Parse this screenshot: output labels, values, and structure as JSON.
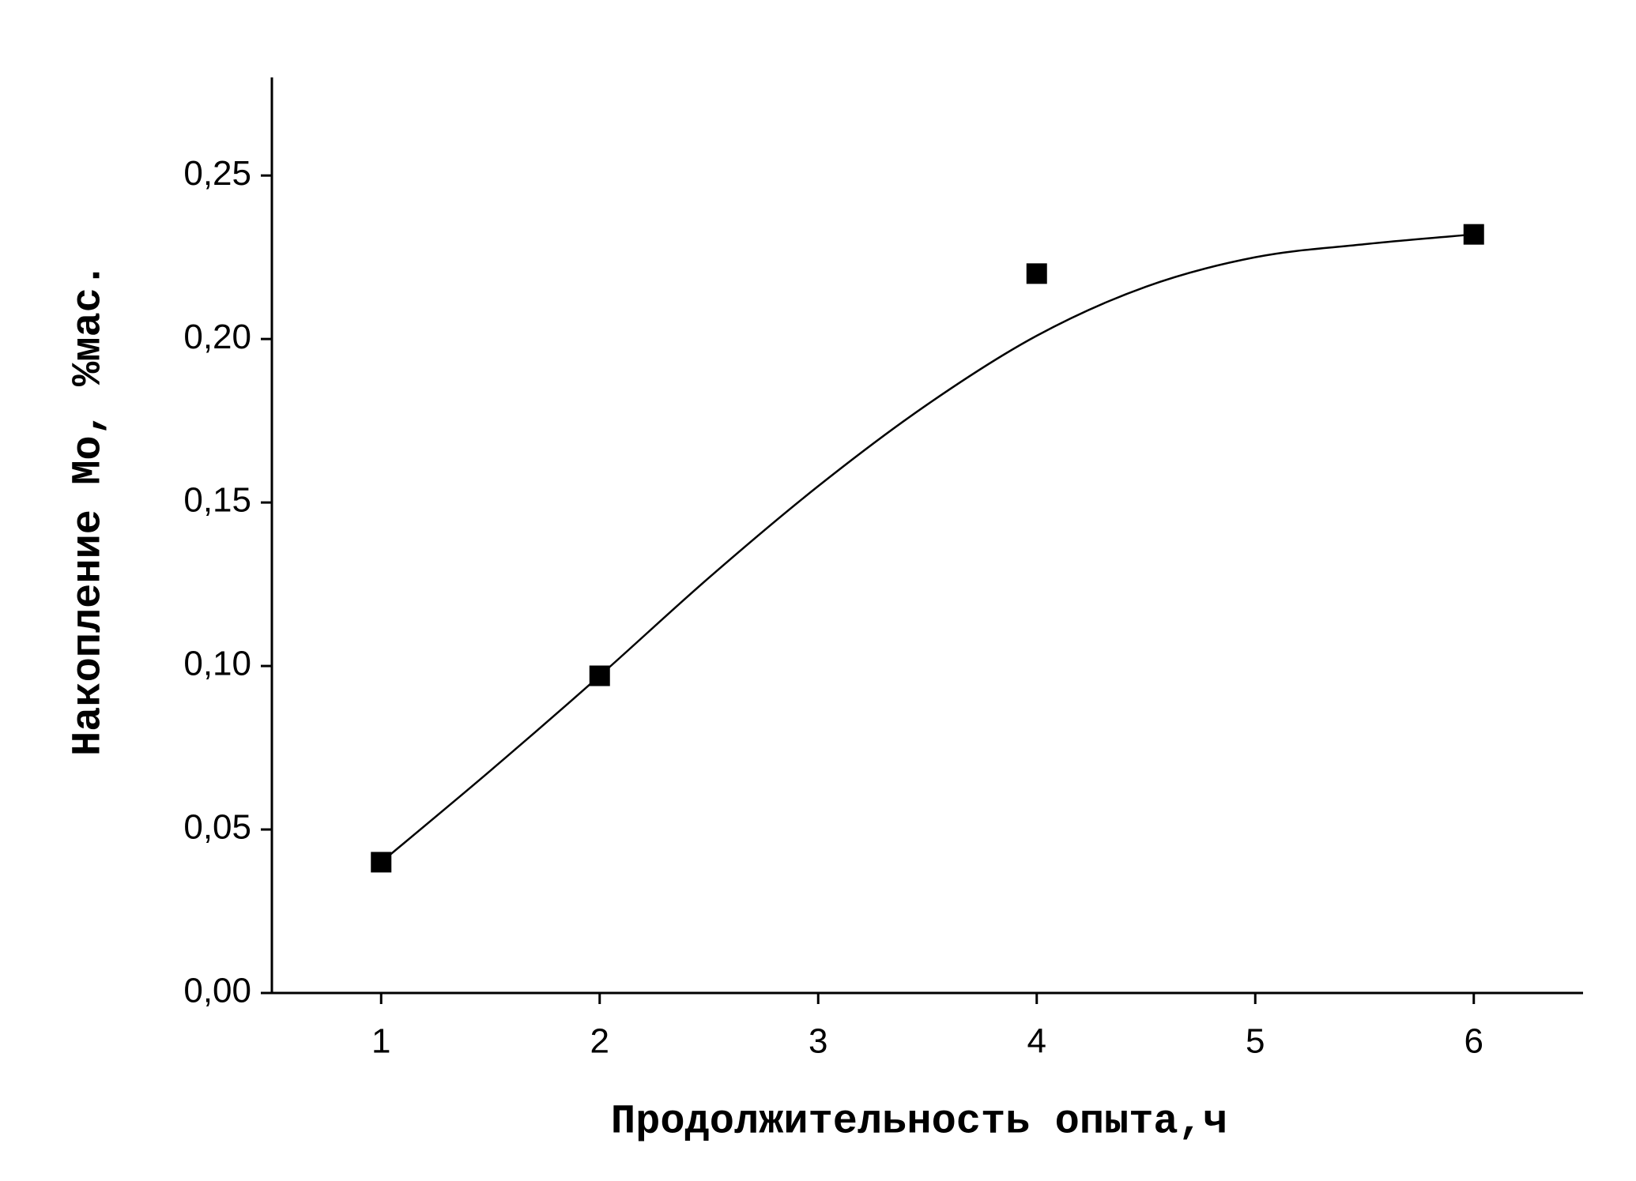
{
  "chart_data": {
    "type": "scatter",
    "x_label": "Продолжительность опыта,ч",
    "y_label": "Накопление Mo, %мас.",
    "xlim": [
      0.5,
      6.5
    ],
    "xticks": [
      1,
      2,
      3,
      4,
      5,
      6
    ],
    "ylim": [
      0,
      0.28
    ],
    "yticks": [
      {
        "value": 0,
        "label": "0,00"
      },
      {
        "value": 0.05,
        "label": "0,05"
      },
      {
        "value": 0.1,
        "label": "0,10"
      },
      {
        "value": 0.15,
        "label": "0,15"
      },
      {
        "value": 0.2,
        "label": "0,20"
      },
      {
        "value": 0.25,
        "label": "0,25"
      }
    ],
    "series": [
      {
        "color": "#000000",
        "marker": "square",
        "x": [
          1,
          2,
          4,
          6
        ],
        "values": [
          0.04,
          0.097,
          0.22,
          0.232
        ]
      },
      {
        "color": "#000000",
        "marker": "line",
        "x": [
          1,
          1.5,
          2,
          2.5,
          3,
          3.5,
          4,
          4.5,
          5,
          5.5,
          6
        ],
        "values": [
          0.04,
          0.068,
          0.097,
          0.127,
          0.155,
          0.18,
          0.201,
          0.216,
          0.225,
          0.229,
          0.232
        ]
      }
    ]
  }
}
